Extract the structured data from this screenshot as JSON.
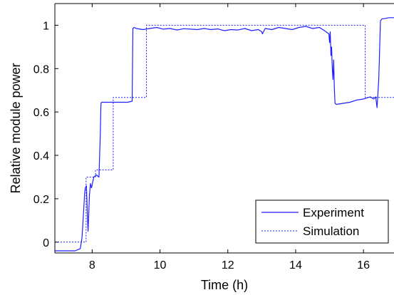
{
  "chart_data": {
    "type": "line",
    "title": "",
    "xlabel": "Time (h)",
    "ylabel": "Relative module power",
    "xlim": [
      6.9,
      16.9
    ],
    "ylim": [
      -0.05,
      1.1
    ],
    "xticks": [
      8,
      10,
      12,
      14,
      16
    ],
    "yticks": [
      0,
      0.2,
      0.4,
      0.6,
      0.8,
      1
    ],
    "ytick_labels": [
      "0",
      "0.2",
      "0.4",
      "0.6",
      "0.8",
      "1"
    ],
    "grid": false,
    "legend_position": "bottom-right",
    "colors": {
      "series": "#1f1fff",
      "axes": "#000000"
    },
    "series": [
      {
        "name": "Experiment",
        "style": "solid",
        "x": [
          6.9,
          7.2,
          7.5,
          7.65,
          7.7,
          7.75,
          7.78,
          7.8,
          7.83,
          7.86,
          7.88,
          7.92,
          7.95,
          7.98,
          8.02,
          8.05,
          8.12,
          8.2,
          8.24,
          8.26,
          8.28,
          8.5,
          8.8,
          9.05,
          9.18,
          9.2,
          9.24,
          9.3,
          9.5,
          9.7,
          9.9,
          10.1,
          10.3,
          10.5,
          10.7,
          10.9,
          11.1,
          11.3,
          11.5,
          11.7,
          11.9,
          12.1,
          12.3,
          12.5,
          12.7,
          12.9,
          13.0,
          13.02,
          13.1,
          13.3,
          13.5,
          13.7,
          13.9,
          14.1,
          14.3,
          14.5,
          14.7,
          14.9,
          14.98,
          15.0,
          15.02,
          15.04,
          15.06,
          15.08,
          15.1,
          15.12,
          15.14,
          15.16,
          15.2,
          15.4,
          15.6,
          15.8,
          16.0,
          16.2,
          16.3,
          16.36,
          16.4,
          16.45,
          16.5,
          16.55,
          16.6,
          16.75,
          16.9
        ],
        "y": [
          -0.04,
          -0.04,
          -0.04,
          -0.03,
          0.02,
          0.15,
          0.23,
          0.25,
          0.26,
          0.12,
          0.05,
          0.22,
          0.27,
          0.25,
          0.28,
          0.3,
          0.31,
          0.3,
          0.5,
          0.64,
          0.645,
          0.645,
          0.645,
          0.645,
          0.65,
          0.985,
          0.99,
          0.985,
          0.98,
          0.985,
          0.99,
          0.982,
          0.985,
          0.978,
          0.984,
          0.982,
          0.98,
          0.985,
          0.98,
          0.983,
          0.975,
          0.98,
          0.978,
          0.985,
          0.975,
          0.98,
          0.97,
          0.96,
          0.985,
          0.98,
          0.99,
          0.985,
          0.98,
          0.99,
          0.995,
          0.985,
          0.99,
          0.97,
          0.96,
          0.92,
          0.97,
          0.86,
          0.9,
          0.8,
          0.75,
          0.84,
          0.72,
          0.64,
          0.635,
          0.64,
          0.645,
          0.655,
          0.66,
          0.67,
          0.66,
          0.67,
          0.62,
          0.75,
          1.02,
          1.03,
          1.03,
          1.035,
          1.035
        ]
      },
      {
        "name": "Simulation",
        "style": "dotted",
        "x": [
          6.9,
          7.82,
          7.82,
          8.1,
          8.1,
          8.62,
          8.62,
          9.3,
          9.3,
          9.6,
          9.6,
          16.05,
          16.05,
          16.9
        ],
        "y": [
          0,
          0,
          0.3,
          0.3,
          0.333,
          0.333,
          0.667,
          0.667,
          0.667,
          0.667,
          1.0,
          1.0,
          0.667,
          0.667
        ]
      }
    ]
  }
}
